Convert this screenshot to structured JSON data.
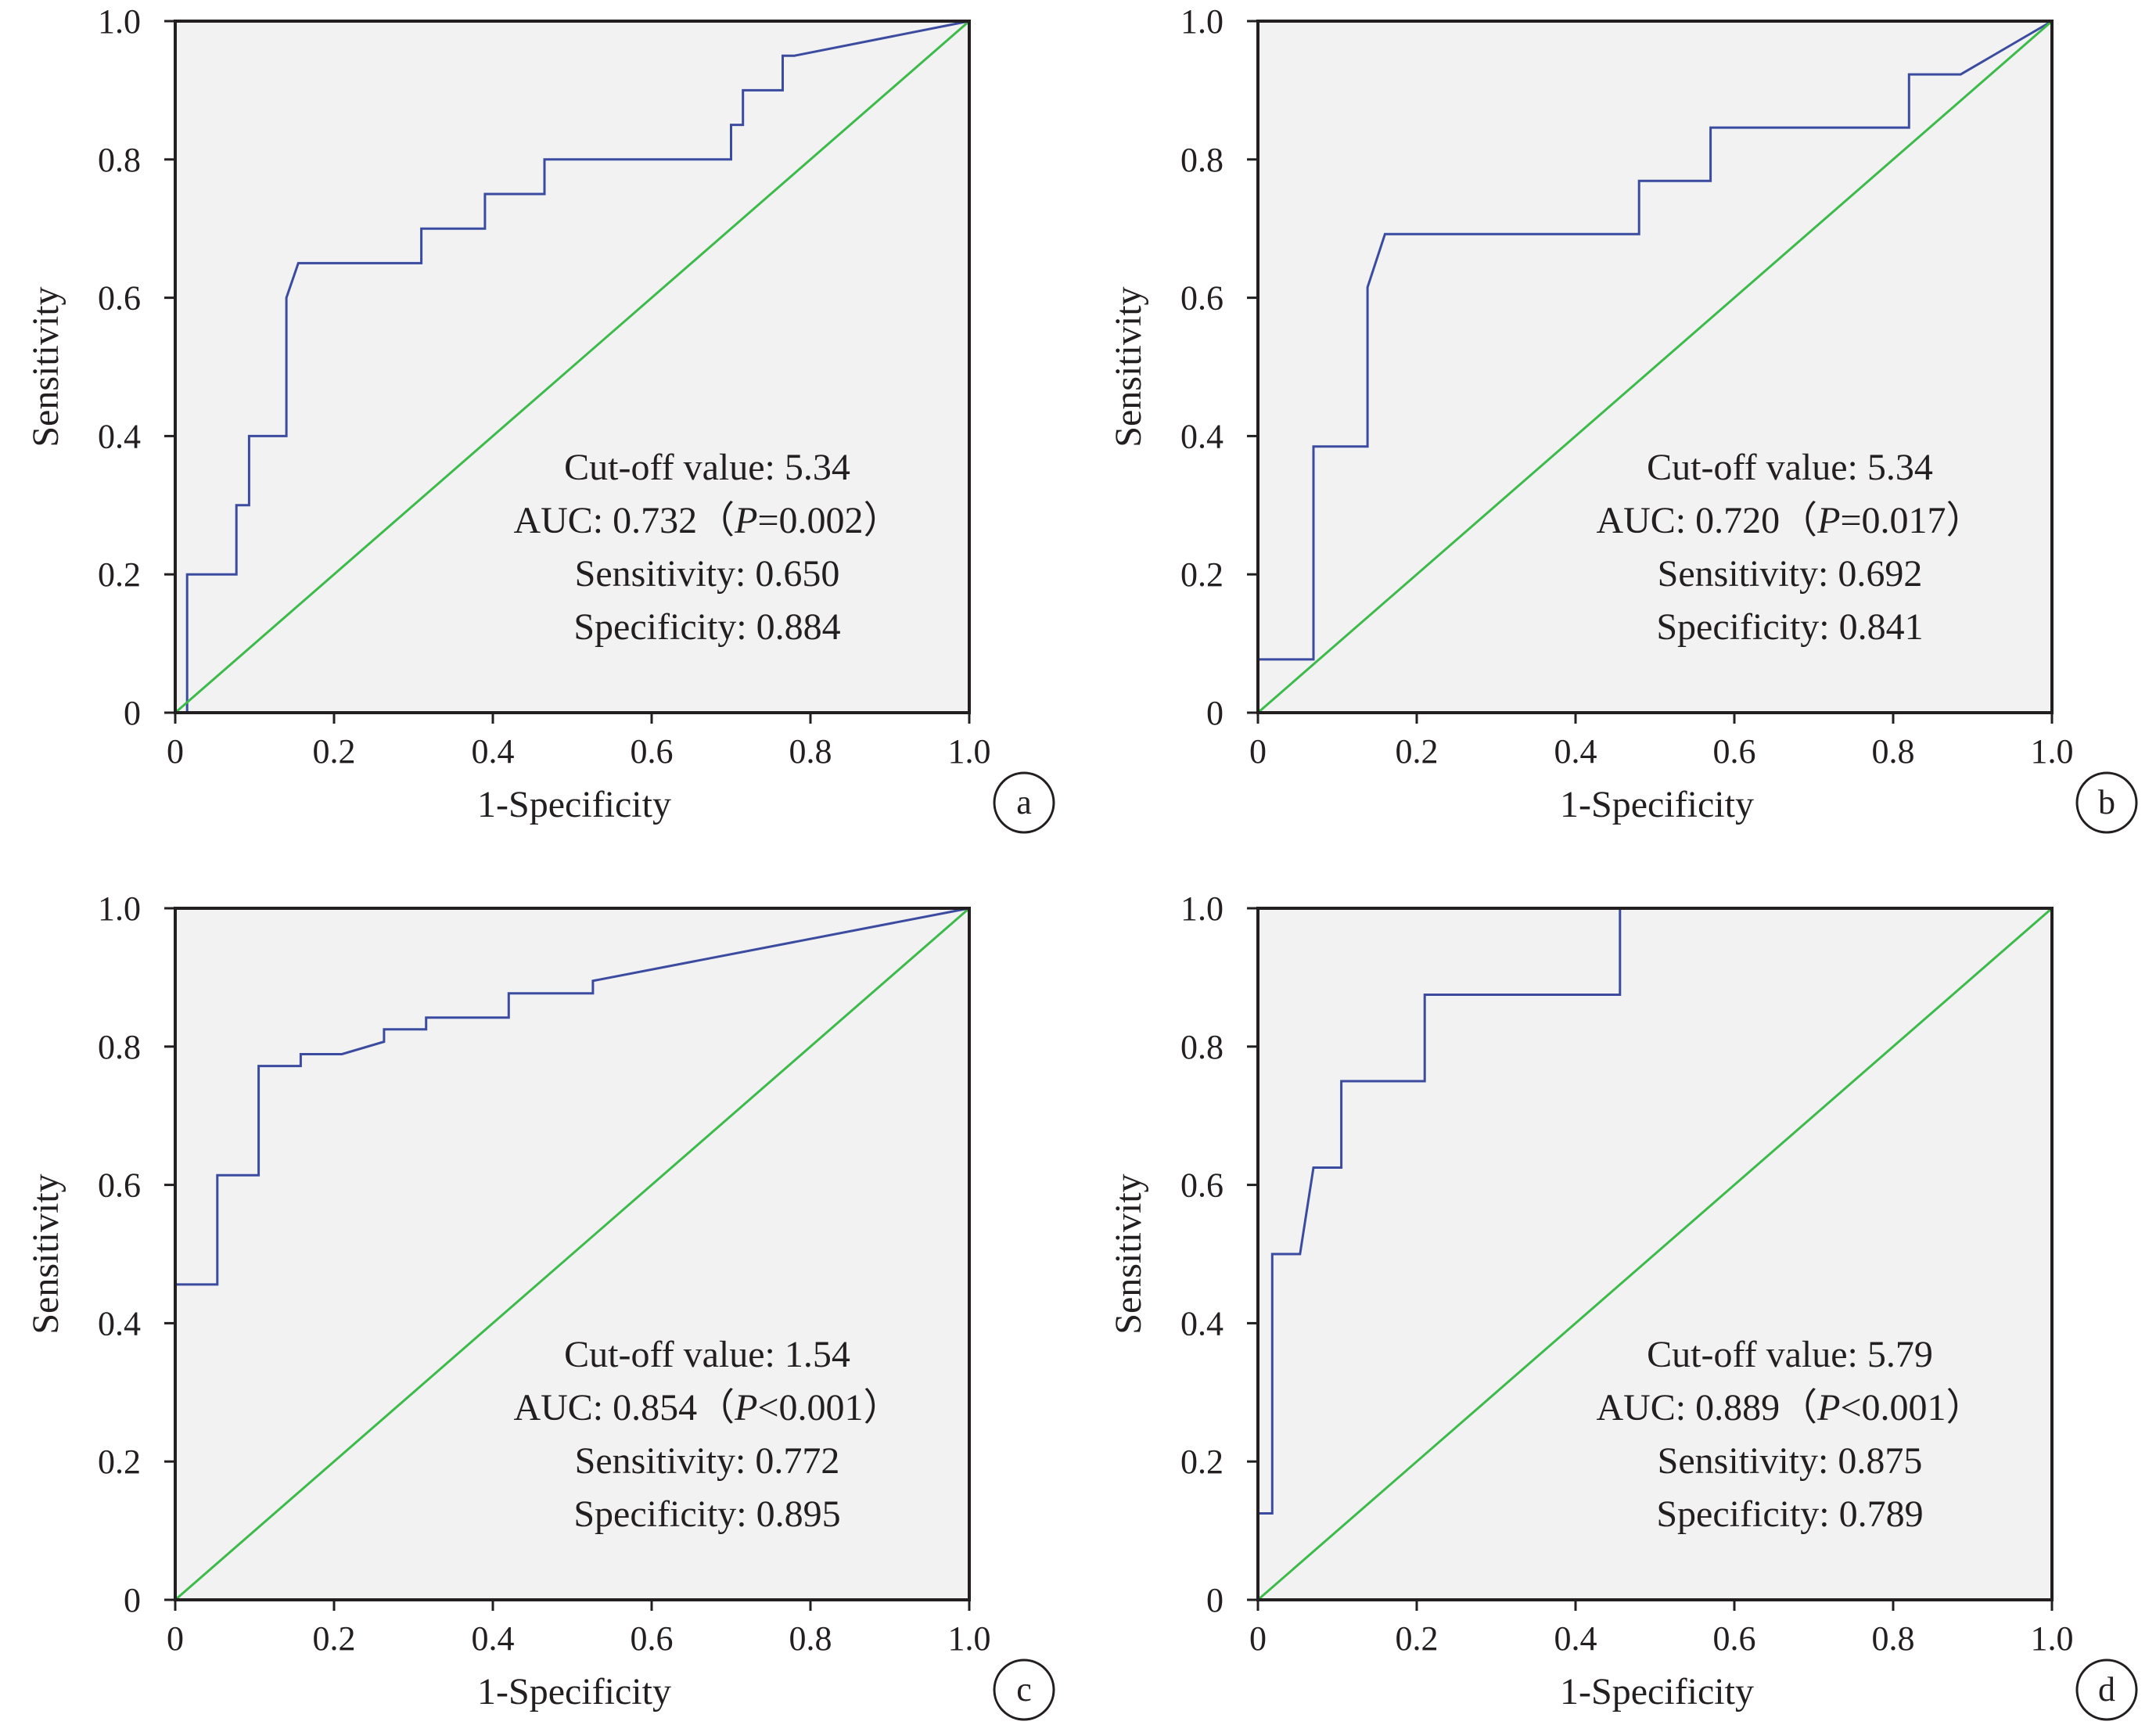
{
  "figure": {
    "background": "#ffffff",
    "plot_bg": "#f2f2f2",
    "axis_color": "#231f20"
  },
  "chart_data": [
    {
      "type": "line",
      "panel_label": "a",
      "xlabel": "1-Specificity",
      "ylabel": "Sensitivity",
      "xlim": [
        0,
        1
      ],
      "ylim": [
        0,
        1
      ],
      "x_ticks": [
        "0",
        "0.2",
        "0.4",
        "0.6",
        "0.8",
        "1.0"
      ],
      "y_ticks": [
        "0",
        "0.2",
        "0.4",
        "0.6",
        "0.8",
        "1.0"
      ],
      "grid": false,
      "legend": "none",
      "annotations": [
        {
          "segments": [
            {
              "text": "Cut-off value: 5.34"
            }
          ]
        },
        {
          "segments": [
            {
              "text": "AUC: 0.732（"
            },
            {
              "text": "P",
              "italic": true
            },
            {
              "text": "=0.002）"
            }
          ]
        },
        {
          "segments": [
            {
              "text": "Sensitivity: 0.650"
            }
          ]
        },
        {
          "segments": [
            {
              "text": "Specificity: 0.884"
            }
          ]
        }
      ],
      "series": [
        {
          "color": "#3b4ca0",
          "points": [
            [
              0,
              0
            ],
            [
              0.015,
              0
            ],
            [
              0.015,
              0.2
            ],
            [
              0.077,
              0.2
            ],
            [
              0.077,
              0.3
            ],
            [
              0.093,
              0.3
            ],
            [
              0.093,
              0.4
            ],
            [
              0.14,
              0.4
            ],
            [
              0.14,
              0.6
            ],
            [
              0.155,
              0.65
            ],
            [
              0.31,
              0.65
            ],
            [
              0.31,
              0.7
            ],
            [
              0.39,
              0.7
            ],
            [
              0.39,
              0.75
            ],
            [
              0.465,
              0.75
            ],
            [
              0.465,
              0.8
            ],
            [
              0.7,
              0.8
            ],
            [
              0.7,
              0.85
            ],
            [
              0.715,
              0.85
            ],
            [
              0.715,
              0.9
            ],
            [
              0.765,
              0.9
            ],
            [
              0.765,
              0.95
            ],
            [
              0.78,
              0.95
            ],
            [
              1,
              1
            ]
          ]
        },
        {
          "color": "#3dbb4a",
          "points": [
            [
              0,
              0
            ],
            [
              1,
              1
            ]
          ]
        }
      ]
    },
    {
      "type": "line",
      "panel_label": "b",
      "xlabel": "1-Specificity",
      "ylabel": "Sensitivity",
      "xlim": [
        0,
        1
      ],
      "ylim": [
        0,
        1
      ],
      "x_ticks": [
        "0",
        "0.2",
        "0.4",
        "0.6",
        "0.8",
        "1.0"
      ],
      "y_ticks": [
        "0",
        "0.2",
        "0.4",
        "0.6",
        "0.8",
        "1.0"
      ],
      "grid": false,
      "legend": "none",
      "annotations": [
        {
          "segments": [
            {
              "text": "Cut-off value: 5.34"
            }
          ]
        },
        {
          "segments": [
            {
              "text": "AUC: 0.720（"
            },
            {
              "text": "P",
              "italic": true
            },
            {
              "text": "=0.017）"
            }
          ]
        },
        {
          "segments": [
            {
              "text": "Sensitivity: 0.692"
            }
          ]
        },
        {
          "segments": [
            {
              "text": "Specificity: 0.841"
            }
          ]
        }
      ],
      "series": [
        {
          "color": "#3b4ca0",
          "points": [
            [
              0,
              0
            ],
            [
              0,
              0.077
            ],
            [
              0.07,
              0.077
            ],
            [
              0.07,
              0.385
            ],
            [
              0.138,
              0.385
            ],
            [
              0.138,
              0.615
            ],
            [
              0.16,
              0.692
            ],
            [
              0.48,
              0.692
            ],
            [
              0.48,
              0.769
            ],
            [
              0.57,
              0.769
            ],
            [
              0.57,
              0.846
            ],
            [
              0.82,
              0.846
            ],
            [
              0.82,
              0.923
            ],
            [
              0.885,
              0.923
            ],
            [
              1,
              1
            ]
          ]
        },
        {
          "color": "#3dbb4a",
          "points": [
            [
              0,
              0
            ],
            [
              1,
              1
            ]
          ]
        }
      ]
    },
    {
      "type": "line",
      "panel_label": "c",
      "xlabel": "1-Specificity",
      "ylabel": "Sensitivity",
      "xlim": [
        0,
        1
      ],
      "ylim": [
        0,
        1
      ],
      "x_ticks": [
        "0",
        "0.2",
        "0.4",
        "0.6",
        "0.8",
        "1.0"
      ],
      "y_ticks": [
        "0",
        "0.2",
        "0.4",
        "0.6",
        "0.8",
        "1.0"
      ],
      "grid": false,
      "legend": "none",
      "annotations": [
        {
          "segments": [
            {
              "text": "Cut-off value: 1.54"
            }
          ]
        },
        {
          "segments": [
            {
              "text": "AUC: 0.854（"
            },
            {
              "text": "P",
              "italic": true
            },
            {
              "text": "<0.001）"
            }
          ]
        },
        {
          "segments": [
            {
              "text": "Sensitivity: 0.772"
            }
          ]
        },
        {
          "segments": [
            {
              "text": "Specificity: 0.895"
            }
          ]
        }
      ],
      "series": [
        {
          "color": "#3b4ca0",
          "points": [
            [
              0,
              0
            ],
            [
              0,
              0.456
            ],
            [
              0.053,
              0.456
            ],
            [
              0.053,
              0.614
            ],
            [
              0.105,
              0.614
            ],
            [
              0.105,
              0.772
            ],
            [
              0.158,
              0.772
            ],
            [
              0.158,
              0.789
            ],
            [
              0.21,
              0.789
            ],
            [
              0.263,
              0.807
            ],
            [
              0.263,
              0.825
            ],
            [
              0.316,
              0.825
            ],
            [
              0.316,
              0.842
            ],
            [
              0.42,
              0.842
            ],
            [
              0.42,
              0.877
            ],
            [
              0.526,
              0.877
            ],
            [
              0.526,
              0.895
            ],
            [
              1,
              1
            ]
          ]
        },
        {
          "color": "#3dbb4a",
          "points": [
            [
              0,
              0
            ],
            [
              1,
              1
            ]
          ]
        }
      ]
    },
    {
      "type": "line",
      "panel_label": "d",
      "xlabel": "1-Specificity",
      "ylabel": "Sensitivity",
      "xlim": [
        0,
        1
      ],
      "ylim": [
        0,
        1
      ],
      "x_ticks": [
        "0",
        "0.2",
        "0.4",
        "0.6",
        "0.8",
        "1.0"
      ],
      "y_ticks": [
        "0",
        "0.2",
        "0.4",
        "0.6",
        "0.8",
        "1.0"
      ],
      "grid": false,
      "legend": "none",
      "annotations": [
        {
          "segments": [
            {
              "text": "Cut-off value: 5.79"
            }
          ]
        },
        {
          "segments": [
            {
              "text": "AUC: 0.889（"
            },
            {
              "text": "P",
              "italic": true
            },
            {
              "text": "<0.001）"
            }
          ]
        },
        {
          "segments": [
            {
              "text": "Sensitivity: 0.875"
            }
          ]
        },
        {
          "segments": [
            {
              "text": "Specificity: 0.789"
            }
          ]
        }
      ],
      "series": [
        {
          "color": "#3b4ca0",
          "points": [
            [
              0,
              0
            ],
            [
              0,
              0.125
            ],
            [
              0.018,
              0.125
            ],
            [
              0.018,
              0.5
            ],
            [
              0.053,
              0.5
            ],
            [
              0.07,
              0.625
            ],
            [
              0.105,
              0.625
            ],
            [
              0.105,
              0.75
            ],
            [
              0.21,
              0.75
            ],
            [
              0.21,
              0.875
            ],
            [
              0.456,
              0.875
            ],
            [
              0.456,
              1
            ],
            [
              1,
              1
            ]
          ]
        },
        {
          "color": "#3dbb4a",
          "points": [
            [
              0,
              0
            ],
            [
              1,
              1
            ]
          ]
        }
      ]
    }
  ]
}
